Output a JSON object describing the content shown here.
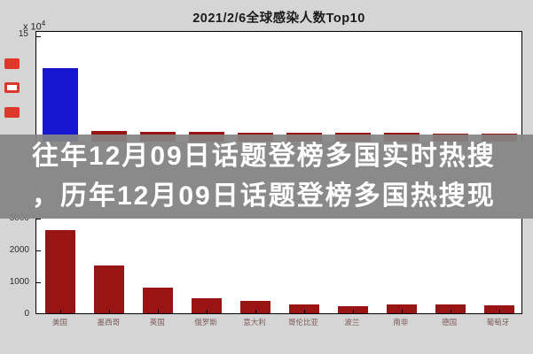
{
  "figure": {
    "title": "2021/2/6全球感染人数Top10",
    "exponent_base": "x 10",
    "exponent_power": "4",
    "background": "#d5d5d5"
  },
  "overlay": {
    "line1": "往年12月09日话题登榜多国实时热搜",
    "line2": "，历年12月09日话题登榜多国热搜现",
    "text_color": "#ffffff",
    "band_color": "rgba(132,132,132,0.93)"
  },
  "left_markers": [
    "solid",
    "outline",
    "solid"
  ],
  "colors": {
    "first_bar": "#1717cf",
    "bar": "#991414",
    "axis": "#000000",
    "tick_label": "#2a2a2a",
    "x_label": "#7d5a5a",
    "marker_red": "#da392c"
  },
  "chart_data": [
    {
      "type": "bar",
      "title": "2021/2/6全球感染人数Top10",
      "y_unit": "×10⁴",
      "ylim": [
        0,
        15
      ],
      "y_ticks": [
        "15"
      ],
      "categories": [
        "美国",
        "墨西哥",
        "英国",
        "俄罗斯",
        "意大利",
        "哥伦比亚",
        "波兰",
        "南非",
        "德国",
        "葡萄牙"
      ],
      "values": [
        10,
        1.4,
        1.35,
        1.3,
        1.25,
        1.2,
        1.2,
        1.15,
        1.1,
        1.1
      ],
      "first_bar_color": "#1717cf",
      "bar_color": "#991414",
      "legend": "none",
      "note": "lower portion of bars hidden behind headline overlay band"
    },
    {
      "type": "bar",
      "ylim": [
        0,
        3000
      ],
      "y_ticks": [
        "3000",
        "2000",
        "1000",
        "0"
      ],
      "categories": [
        "美国",
        "墨西哥",
        "英国",
        "俄罗斯",
        "意大利",
        "哥伦比亚",
        "波兰",
        "南非",
        "德国",
        "葡萄牙"
      ],
      "values": [
        2600,
        1500,
        810,
        470,
        400,
        280,
        230,
        280,
        280,
        260
      ],
      "bar_color": "#991414",
      "legend": "none"
    }
  ]
}
